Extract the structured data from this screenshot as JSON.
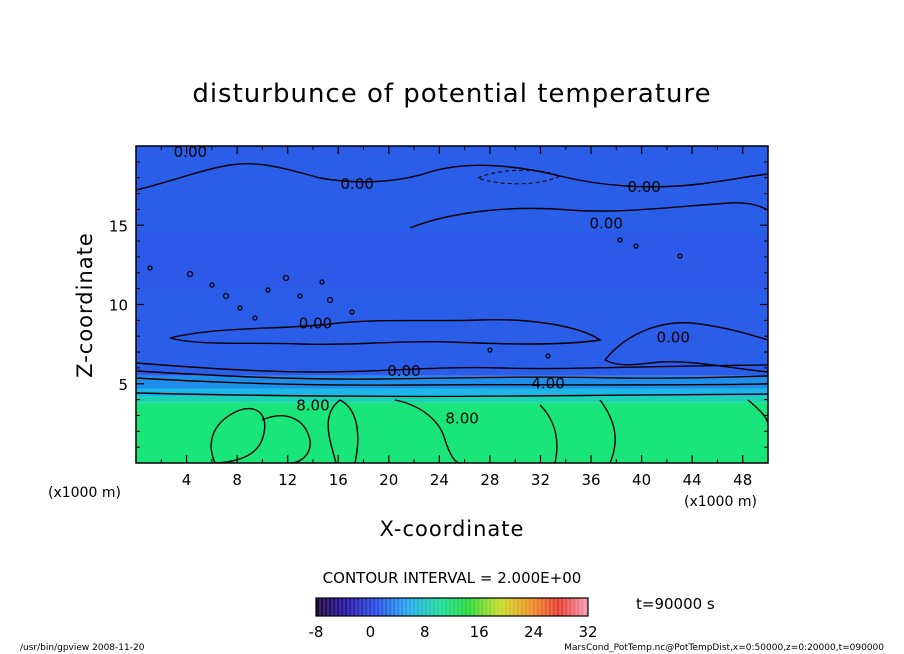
{
  "chart_data": {
    "type": "heatmap",
    "title": "disturbunce of potential temperature",
    "xlabel": "X-coordinate",
    "ylabel": "Z-coordinate",
    "x_unit": "(x1000 m)",
    "y_unit": "(x1000 m)",
    "xlim": [
      0,
      50
    ],
    "ylim": [
      0,
      20
    ],
    "x_ticks": [
      4,
      8,
      12,
      16,
      20,
      24,
      28,
      32,
      36,
      40,
      44,
      48
    ],
    "y_ticks": [
      5,
      10,
      15
    ],
    "contour_interval_text": "CONTOUR INTERVAL = 2.000E+00",
    "colorbar": {
      "ticks": [
        -8,
        0,
        8,
        16,
        24,
        32
      ],
      "range": [
        -8,
        32
      ]
    },
    "contour_labels": [
      {
        "text": "0.00",
        "x": 4.3,
        "z": 19.3
      },
      {
        "text": "0.00",
        "x": 17.5,
        "z": 17.3
      },
      {
        "text": "0.00",
        "x": 40.2,
        "z": 17.1
      },
      {
        "text": "0.00",
        "x": 37.2,
        "z": 14.8
      },
      {
        "text": "0.00",
        "x": 14.2,
        "z": 8.5
      },
      {
        "text": "0.00",
        "x": 42.5,
        "z": 7.6
      },
      {
        "text": "0.00",
        "x": 21.2,
        "z": 5.5
      },
      {
        "text": "4.00",
        "x": 32.6,
        "z": 4.7
      },
      {
        "text": "8.00",
        "x": 14.0,
        "z": 3.3
      },
      {
        "text": "8.00",
        "x": 25.8,
        "z": 2.5
      }
    ],
    "layers": [
      {
        "z_bottom": 0,
        "z_top": 3.8,
        "value": 8,
        "color": "#19e57a"
      },
      {
        "z_bottom": 3.8,
        "z_top": 4.2,
        "value": 6,
        "color": "#18d2b2"
      },
      {
        "z_bottom": 4.2,
        "z_top": 4.7,
        "value": 4,
        "color": "#1cb7e8"
      },
      {
        "z_bottom": 4.7,
        "z_top": 5.5,
        "value": 2,
        "color": "#208de8"
      },
      {
        "z_bottom": 5.5,
        "z_top": 20,
        "value": 0,
        "color": "#2a5de8"
      }
    ],
    "grid": false,
    "legend_placement": "bottom"
  },
  "time_label": "t=90000 s",
  "footer_left": "/usr/bin/gpview   2008-11-20",
  "footer_right": "MarsCond_PotTemp.nc@PotTempDist,x=0:50000,z=0:20000,t=090000"
}
